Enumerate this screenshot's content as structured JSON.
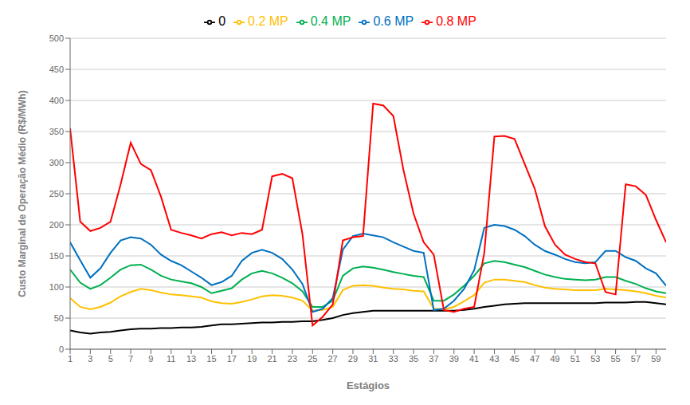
{
  "chart_data": {
    "type": "line",
    "xlabel": "Estágios",
    "ylabel": "Custo Marginal de Operação Médio (R$/MWh)",
    "x": [
      1,
      2,
      3,
      4,
      5,
      6,
      7,
      8,
      9,
      10,
      11,
      12,
      13,
      14,
      15,
      16,
      17,
      18,
      19,
      20,
      21,
      22,
      23,
      24,
      25,
      26,
      27,
      28,
      29,
      30,
      31,
      32,
      33,
      34,
      35,
      36,
      37,
      38,
      39,
      40,
      41,
      42,
      43,
      44,
      45,
      46,
      47,
      48,
      49,
      50,
      51,
      52,
      53,
      54,
      55,
      56,
      57,
      58,
      59,
      60
    ],
    "xlim": [
      1,
      60
    ],
    "xticks": [
      1,
      3,
      5,
      7,
      9,
      11,
      13,
      15,
      17,
      19,
      21,
      23,
      25,
      27,
      29,
      31,
      33,
      35,
      37,
      39,
      41,
      43,
      45,
      47,
      49,
      51,
      53,
      55,
      57,
      59
    ],
    "ylim": [
      0,
      500
    ],
    "yticks": [
      0,
      50,
      100,
      150,
      200,
      250,
      300,
      350,
      400,
      450,
      500
    ],
    "grid": true,
    "legend": "top",
    "series": [
      {
        "name": "0",
        "color": "#000000",
        "values": [
          30,
          27,
          25,
          27,
          28,
          30,
          32,
          33,
          33,
          34,
          34,
          35,
          35,
          36,
          38,
          40,
          40,
          41,
          42,
          43,
          43,
          44,
          44,
          45,
          45,
          47,
          50,
          55,
          58,
          60,
          62,
          62,
          62,
          62,
          62,
          62,
          62,
          62,
          62,
          63,
          65,
          68,
          70,
          72,
          73,
          74,
          74,
          74,
          74,
          74,
          74,
          74,
          74,
          75,
          75,
          75,
          76,
          76,
          74,
          72
        ]
      },
      {
        "name": "0.2 MP",
        "color": "#FFC000",
        "values": [
          82,
          68,
          64,
          68,
          75,
          85,
          92,
          97,
          95,
          91,
          88,
          87,
          85,
          83,
          77,
          74,
          73,
          76,
          80,
          85,
          87,
          86,
          83,
          78,
          62,
          63,
          68,
          95,
          102,
          103,
          102,
          99,
          97,
          96,
          94,
          93,
          65,
          64,
          68,
          77,
          87,
          107,
          112,
          112,
          110,
          108,
          103,
          99,
          97,
          96,
          95,
          95,
          95,
          97,
          96,
          95,
          93,
          90,
          86,
          83
        ]
      },
      {
        "name": "0.4 MP",
        "color": "#00B050",
        "values": [
          128,
          107,
          97,
          103,
          115,
          128,
          135,
          136,
          128,
          118,
          112,
          109,
          106,
          100,
          90,
          94,
          98,
          112,
          122,
          126,
          122,
          115,
          106,
          93,
          68,
          68,
          78,
          118,
          130,
          133,
          131,
          128,
          124,
          121,
          118,
          116,
          78,
          78,
          88,
          102,
          118,
          138,
          142,
          140,
          136,
          132,
          126,
          120,
          116,
          113,
          112,
          111,
          112,
          116,
          116,
          110,
          105,
          98,
          93,
          90
        ]
      },
      {
        "name": "0.6 MP",
        "color": "#0070C0",
        "values": [
          172,
          143,
          115,
          130,
          155,
          175,
          180,
          178,
          168,
          152,
          142,
          135,
          125,
          115,
          103,
          108,
          118,
          142,
          155,
          160,
          155,
          145,
          128,
          105,
          60,
          65,
          82,
          160,
          182,
          186,
          183,
          180,
          172,
          165,
          158,
          155,
          63,
          65,
          78,
          97,
          127,
          195,
          200,
          198,
          192,
          182,
          168,
          158,
          152,
          145,
          140,
          138,
          140,
          158,
          158,
          148,
          142,
          130,
          122,
          102
        ]
      },
      {
        "name": "0.8 MP",
        "color": "#FF0000",
        "values": [
          355,
          205,
          190,
          195,
          205,
          265,
          332,
          298,
          288,
          245,
          192,
          187,
          183,
          178,
          185,
          188,
          183,
          187,
          185,
          192,
          278,
          282,
          275,
          185,
          38,
          52,
          72,
          175,
          180,
          182,
          395,
          392,
          375,
          288,
          218,
          172,
          152,
          63,
          60,
          65,
          68,
          155,
          342,
          343,
          338,
          298,
          258,
          198,
          168,
          152,
          145,
          140,
          138,
          92,
          88,
          265,
          262,
          248,
          208,
          172
        ]
      }
    ]
  }
}
